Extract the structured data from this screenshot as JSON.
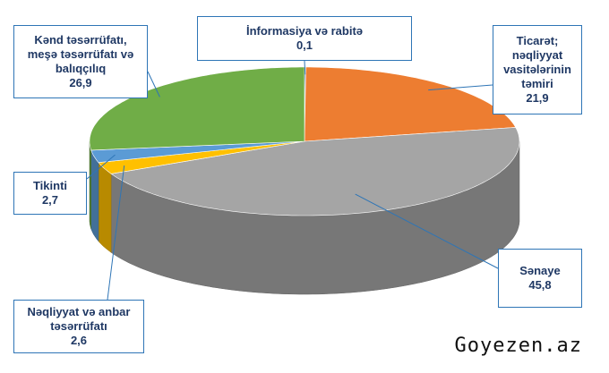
{
  "chart_data": {
    "type": "pie3d",
    "categories": [
      "İnformasiya və rabitə",
      "Ticarət; nəqliyyat vasitələrinin təmiri",
      "Sənaye",
      "Nəqliyyat və anbar təsərrüfatı",
      "Tikinti",
      "Kənd təsərrüfatı, meşə təsərrüfatı və balıqçılıq"
    ],
    "values": [
      0.1,
      21.9,
      45.8,
      2.6,
      2.7,
      26.9
    ],
    "value_labels": [
      "0,1",
      "21,9",
      "45,8",
      "2,6",
      "2,7",
      "26,9"
    ],
    "colors": [
      "#4472c4",
      "#ed7d31",
      "#a5a5a5",
      "#ffc000",
      "#5b9bd5",
      "#70ad47"
    ],
    "watermark": "Goyezen.az"
  }
}
